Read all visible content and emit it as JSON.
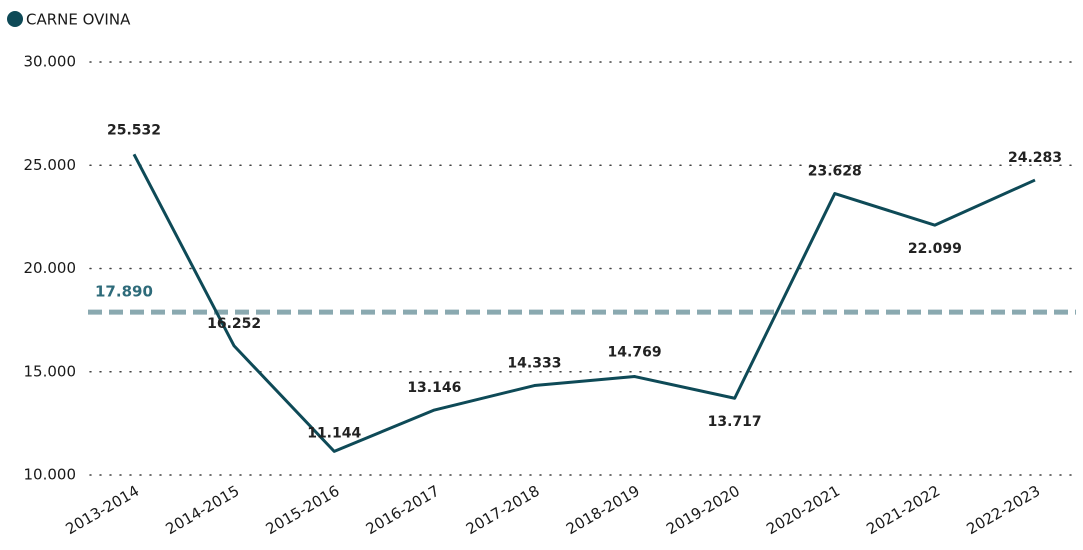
{
  "chart_data": {
    "type": "line",
    "categories": [
      "2013-2014",
      "2014-2015",
      "2015-2016",
      "2016-2017",
      "2017-2018",
      "2018-2019",
      "2019-2020",
      "2020-2021",
      "2021-2022",
      "2022-2023"
    ],
    "series": [
      {
        "name": "CARNE OVINA",
        "color": "#0e4a57",
        "values": [
          25532,
          16252,
          11144,
          13146,
          14333,
          14769,
          13717,
          23628,
          22099,
          24283
        ],
        "value_labels": [
          "25.532",
          "16.252",
          "11.144",
          "13.146",
          "14.333",
          "14.769",
          "13.717",
          "23.628",
          "22.099",
          "24.283"
        ]
      }
    ],
    "ylim": [
      10000,
      30000
    ],
    "yticks": [
      {
        "value": 10000,
        "label": "10.000"
      },
      {
        "value": 15000,
        "label": "15.000"
      },
      {
        "value": 20000,
        "label": "20.000"
      },
      {
        "value": 25000,
        "label": "25.000"
      },
      {
        "value": 30000,
        "label": "30.000"
      }
    ],
    "reference_line": {
      "value": 17890,
      "label": "17.890",
      "color": "#8aa9b0"
    },
    "grid": true,
    "legend": "top-left"
  }
}
